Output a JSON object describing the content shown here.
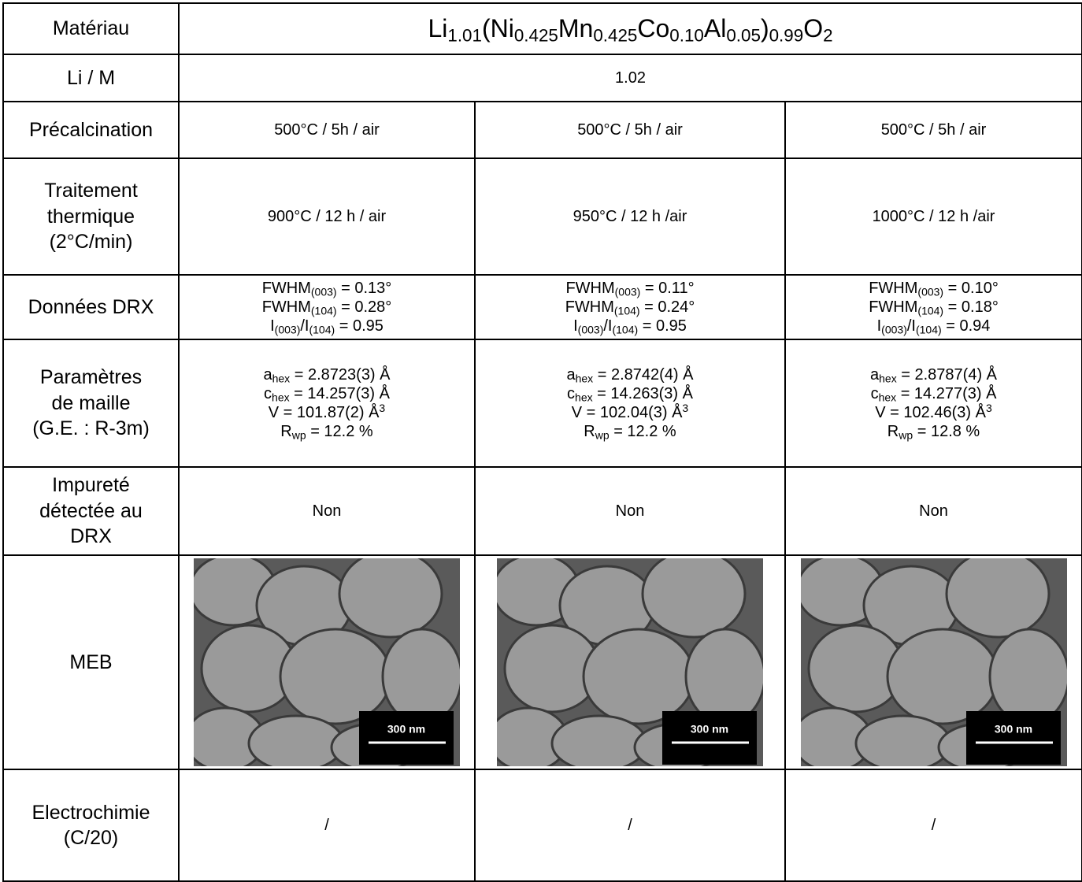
{
  "table": {
    "rows": [
      {
        "label": [
          "Matériau"
        ],
        "cells": [
          {
            "lines": [
              [
                {
                  "t": "Li"
                },
                {
                  "sub": "1.01"
                },
                {
                  "t": "(Ni"
                },
                {
                  "sub": "0.425"
                },
                {
                  "t": "Mn"
                },
                {
                  "sub": "0.425"
                },
                {
                  "t": "Co"
                },
                {
                  "sub": "0.10"
                },
                {
                  "t": "Al"
                },
                {
                  "sub": "0.05"
                },
                {
                  "t": ")"
                },
                {
                  "sub": "0.99"
                },
                {
                  "t": "O"
                },
                {
                  "sub": "2"
                }
              ]
            ]
          }
        ]
      },
      {
        "label": [
          "Li / M"
        ],
        "cells": [
          {
            "lines": [
              "1.02"
            ]
          }
        ]
      },
      {
        "label": [
          "Précalcination"
        ],
        "cells": [
          {
            "lines": [
              "500°C / 5h / air"
            ]
          },
          {
            "lines": [
              "500°C / 5h / air"
            ]
          },
          {
            "lines": [
              "500°C / 5h / air"
            ]
          }
        ]
      },
      {
        "label": [
          "Traitement",
          "thermique",
          "(2°C/min)"
        ],
        "cells": [
          {
            "lines": [
              "900°C / 12 h / air"
            ]
          },
          {
            "lines": [
              "950°C / 12 h /air"
            ]
          },
          {
            "lines": [
              "1000°C / 12 h /air"
            ]
          }
        ]
      },
      {
        "label": [
          "Données DRX"
        ],
        "cells": [
          {
            "lines": [
              [
                {
                  "t": "FWHM"
                },
                {
                  "sub": "(003)"
                },
                {
                  "t": " = 0.13°"
                }
              ],
              [
                {
                  "t": "FWHM"
                },
                {
                  "sub": "(104)"
                },
                {
                  "t": " = 0.28°"
                }
              ],
              [
                {
                  "t": "I"
                },
                {
                  "sub": "(003)"
                },
                {
                  "t": "/I"
                },
                {
                  "sub": "(104)"
                },
                {
                  "t": " = 0.95"
                }
              ]
            ]
          },
          {
            "lines": [
              [
                {
                  "t": "FWHM"
                },
                {
                  "sub": "(003)"
                },
                {
                  "t": " = 0.11°"
                }
              ],
              [
                {
                  "t": "FWHM"
                },
                {
                  "sub": "(104)"
                },
                {
                  "t": " = 0.24°"
                }
              ],
              [
                {
                  "t": "I"
                },
                {
                  "sub": "(003)"
                },
                {
                  "t": "/I"
                },
                {
                  "sub": "(104)"
                },
                {
                  "t": " = 0.95"
                }
              ]
            ]
          },
          {
            "lines": [
              [
                {
                  "t": "FWHM"
                },
                {
                  "sub": "(003)"
                },
                {
                  "t": " = 0.10°"
                }
              ],
              [
                {
                  "t": "FWHM"
                },
                {
                  "sub": "(104)"
                },
                {
                  "t": " = 0.18°"
                }
              ],
              [
                {
                  "t": "I"
                },
                {
                  "sub": "(003)"
                },
                {
                  "t": "/I"
                },
                {
                  "sub": "(104)"
                },
                {
                  "t": " = 0.94"
                }
              ]
            ]
          }
        ]
      },
      {
        "label": [
          "Paramètres",
          "de maille",
          "(G.E. : R-3m)"
        ],
        "cells": [
          {
            "lines": [
              [
                {
                  "t": "a"
                },
                {
                  "sub": "hex"
                },
                {
                  "t": " = 2.8723(3) Å"
                }
              ],
              [
                {
                  "t": "c"
                },
                {
                  "sub": "hex"
                },
                {
                  "t": " = 14.257(3) Å"
                }
              ],
              [
                {
                  "t": "V = 101.87(2) Å"
                },
                {
                  "sup": "3"
                }
              ],
              [
                {
                  "t": "R"
                },
                {
                  "sub": "wp"
                },
                {
                  "t": " = 12.2 %"
                }
              ]
            ]
          },
          {
            "lines": [
              [
                {
                  "t": "a"
                },
                {
                  "sub": "hex"
                },
                {
                  "t": " = 2.8742(4) Å"
                }
              ],
              [
                {
                  "t": "c"
                },
                {
                  "sub": "hex"
                },
                {
                  "t": " = 14.263(3) Å"
                }
              ],
              [
                {
                  "t": "V = 102.04(3) Å"
                },
                {
                  "sup": "3"
                }
              ],
              [
                {
                  "t": "R"
                },
                {
                  "sub": "wp"
                },
                {
                  "t": " = 12.2 %"
                }
              ]
            ]
          },
          {
            "lines": [
              [
                {
                  "t": "a"
                },
                {
                  "sub": "hex"
                },
                {
                  "t": " = 2.8787(4) Å"
                }
              ],
              [
                {
                  "t": "c"
                },
                {
                  "sub": "hex"
                },
                {
                  "t": " = 14.277(3) Å"
                }
              ],
              [
                {
                  "t": "V = 102.46(3) Å"
                },
                {
                  "sup": "3"
                }
              ],
              [
                {
                  "t": "R"
                },
                {
                  "sub": "wp"
                },
                {
                  "t": " = 12.8 %"
                }
              ]
            ]
          }
        ]
      },
      {
        "label": [
          "Impureté",
          "détectée au",
          "DRX"
        ],
        "cells": [
          {
            "lines": [
              "Non"
            ]
          },
          {
            "lines": [
              "Non"
            ]
          },
          {
            "lines": [
              "Non"
            ]
          }
        ]
      },
      {
        "label": [
          "MEB"
        ],
        "cells": [
          {
            "image": {
              "scale_bar": "300 nm"
            }
          },
          {
            "image": {
              "scale_bar": "300 nm"
            }
          },
          {
            "image": {
              "scale_bar": "300 nm"
            }
          }
        ]
      },
      {
        "label": [
          "Electrochimie",
          "(C/20)"
        ],
        "cells": [
          {
            "lines": [
              "/"
            ]
          },
          {
            "lines": [
              "/"
            ]
          },
          {
            "lines": [
              "/"
            ]
          }
        ]
      }
    ]
  }
}
